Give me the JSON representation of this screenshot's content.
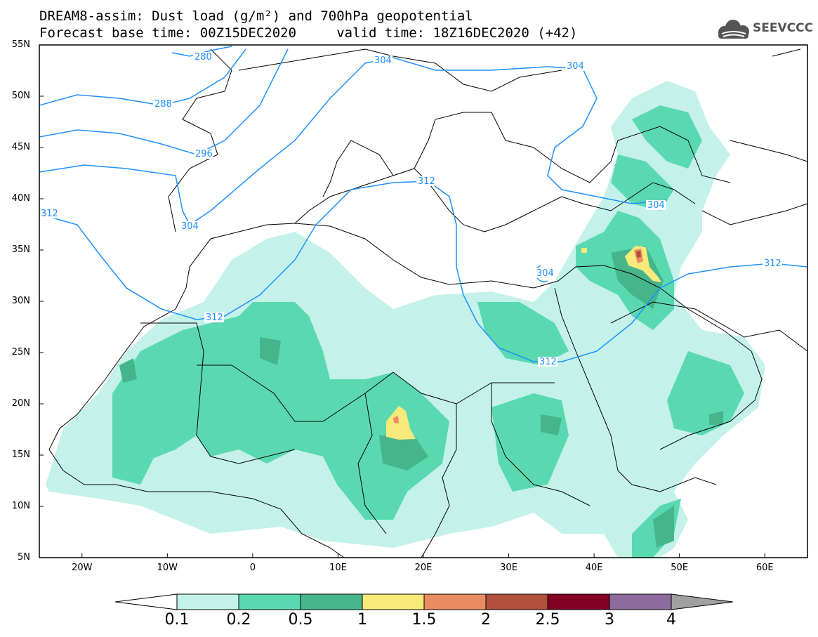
{
  "title": {
    "line1": "DREAM8-assim: Dust load (g/m²) and 700hPa geopotential",
    "line2": "Forecast base time: 00Z15DEC2020     valid time: 18Z16DEC2020 (+42)"
  },
  "logo": {
    "text": "SEEVCCC",
    "icon": "cloud-icon"
  },
  "map": {
    "lon_range": [
      -25,
      65
    ],
    "lat_range": [
      5,
      55
    ],
    "lat_ticks": [
      "55N",
      "50N",
      "45N",
      "40N",
      "35N",
      "30N",
      "25N",
      "20N",
      "15N",
      "10N",
      "5N"
    ],
    "lon_ticks": [
      "20W",
      "10W",
      "0",
      "10E",
      "20E",
      "30E",
      "40E",
      "50E",
      "60E"
    ]
  },
  "contours": {
    "color": "#1e90ff",
    "labels": [
      "280",
      "288",
      "296",
      "304",
      "304",
      "304",
      "312",
      "312",
      "312",
      "312",
      "304",
      "304",
      "312"
    ]
  },
  "colorbar": {
    "labels": [
      "0.1",
      "0.2",
      "0.5",
      "1",
      "1.5",
      "2",
      "2.5",
      "3",
      "4"
    ],
    "colors": [
      "#c4f2ea",
      "#5ad9b1",
      "#45b68c",
      "#f7e97a",
      "#e98c62",
      "#b0503d",
      "#820124",
      "#8d6c9d"
    ],
    "low_extend": "#ffffff",
    "high_extend": "#a0a0a0"
  },
  "legend": {
    "levels": [
      0.1,
      0.2,
      0.5,
      1,
      1.5,
      2,
      2.5,
      3,
      4
    ]
  }
}
